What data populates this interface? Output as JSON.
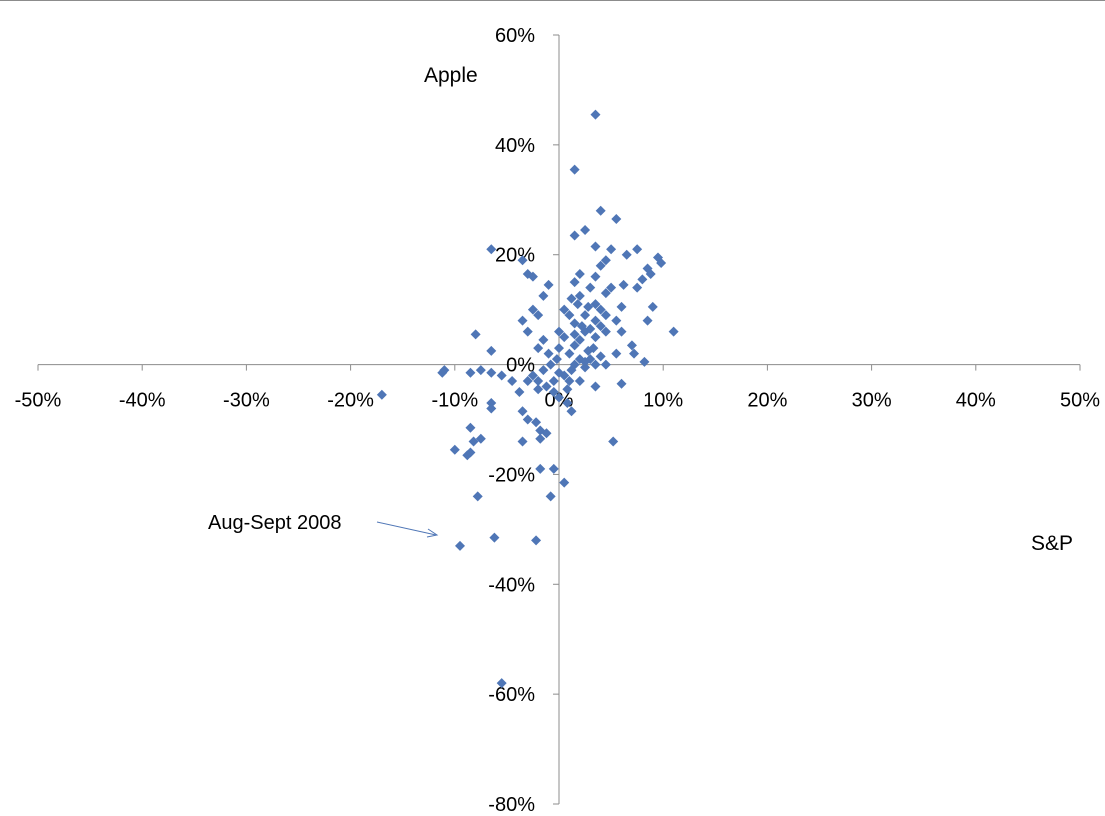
{
  "chart_data": {
    "type": "scatter",
    "ylabel": "Apple",
    "xlabel": "S&P",
    "xlim": [
      -0.5,
      0.5
    ],
    "ylim": [
      -0.8,
      0.6
    ],
    "x_ticks": [
      -0.5,
      -0.4,
      -0.3,
      -0.2,
      -0.1,
      0,
      0.1,
      0.2,
      0.3,
      0.4,
      0.5
    ],
    "x_tick_labels": [
      "-50%",
      "-40%",
      "-30%",
      "-20%",
      "-10%",
      "0%",
      "10%",
      "20%",
      "30%",
      "40%",
      "50%"
    ],
    "y_ticks": [
      0.6,
      0.4,
      0.2,
      0,
      -0.2,
      -0.4,
      -0.6,
      -0.8
    ],
    "y_tick_labels": [
      "60%",
      "40%",
      "20%",
      "0%",
      "-20%",
      "-40%",
      "-60%",
      "-80%"
    ],
    "grid": false,
    "marker": "diamond",
    "marker_color": "#4f76b6",
    "annotation": {
      "text": "Aug-Sept 2008",
      "target": [
        -0.12,
        -0.31
      ]
    },
    "points": [
      [
        0.035,
        0.455
      ],
      [
        0.015,
        0.355
      ],
      [
        0.04,
        0.28
      ],
      [
        0.055,
        0.265
      ],
      [
        0.025,
        0.245
      ],
      [
        0.015,
        0.235
      ],
      [
        0.035,
        0.215
      ],
      [
        0.05,
        0.21
      ],
      [
        0.075,
        0.21
      ],
      [
        0.095,
        0.195
      ],
      [
        0.065,
        0.2
      ],
      [
        0.045,
        0.19
      ],
      [
        0.04,
        0.18
      ],
      [
        0.085,
        0.175
      ],
      [
        0.098,
        0.185
      ],
      [
        0.088,
        0.165
      ],
      [
        0.02,
        0.165
      ],
      [
        0.035,
        0.16
      ],
      [
        0.015,
        0.15
      ],
      [
        0.08,
        0.155
      ],
      [
        0.062,
        0.145
      ],
      [
        0.03,
        0.14
      ],
      [
        0.075,
        0.14
      ],
      [
        0.05,
        0.14
      ],
      [
        0.045,
        0.13
      ],
      [
        0.02,
        0.125
      ],
      [
        0.012,
        0.12
      ],
      [
        0.018,
        0.11
      ],
      [
        0.035,
        0.11
      ],
      [
        0.04,
        0.1
      ],
      [
        0.028,
        0.105
      ],
      [
        0.06,
        0.105
      ],
      [
        0.09,
        0.105
      ],
      [
        0.005,
        0.1
      ],
      [
        0.01,
        0.09
      ],
      [
        0.025,
        0.09
      ],
      [
        0.045,
        0.09
      ],
      [
        0.055,
        0.08
      ],
      [
        0.035,
        0.08
      ],
      [
        0.015,
        0.075
      ],
      [
        0.085,
        0.08
      ],
      [
        0.06,
        0.06
      ],
      [
        0.11,
        0.06
      ],
      [
        0.045,
        0.06
      ],
      [
        0.03,
        0.065
      ],
      [
        0.025,
        0.06
      ],
      [
        0.015,
        0.055
      ],
      [
        0.005,
        0.05
      ],
      [
        0.035,
        0.05
      ],
      [
        0.02,
        0.045
      ],
      [
        0.07,
        0.035
      ],
      [
        0.072,
        0.02
      ],
      [
        0.055,
        0.02
      ],
      [
        0.04,
        0.015
      ],
      [
        0.03,
        0.01
      ],
      [
        0.02,
        0.01
      ],
      [
        0.01,
        0.02
      ],
      [
        0.0,
        0.03
      ],
      [
        0.035,
        0.0
      ],
      [
        0.082,
        0.005
      ],
      [
        0.045,
        0.0
      ],
      [
        0.015,
        0.0
      ],
      [
        0.025,
        -0.005
      ],
      [
        0.06,
        -0.035
      ],
      [
        0.035,
        -0.04
      ],
      [
        0.02,
        -0.03
      ],
      [
        0.005,
        -0.02
      ],
      [
        0.01,
        -0.03
      ],
      [
        0.052,
        -0.14
      ],
      [
        0.005,
        -0.215
      ],
      [
        -0.005,
        -0.19
      ],
      [
        -0.018,
        -0.19
      ],
      [
        -0.008,
        -0.24
      ],
      [
        0.008,
        -0.07
      ],
      [
        0.0,
        -0.06
      ],
      [
        0.012,
        -0.085
      ],
      [
        -0.005,
        -0.05
      ],
      [
        -0.012,
        -0.04
      ],
      [
        -0.02,
        -0.03
      ],
      [
        -0.025,
        -0.02
      ],
      [
        -0.015,
        -0.01
      ],
      [
        -0.008,
        0.0
      ],
      [
        -0.002,
        0.01
      ],
      [
        -0.01,
        0.02
      ],
      [
        -0.02,
        0.03
      ],
      [
        -0.015,
        0.045
      ],
      [
        0.0,
        0.06
      ],
      [
        -0.03,
        0.06
      ],
      [
        -0.035,
        0.08
      ],
      [
        -0.02,
        0.09
      ],
      [
        -0.025,
        0.1
      ],
      [
        -0.015,
        0.125
      ],
      [
        -0.01,
        0.145
      ],
      [
        -0.025,
        0.16
      ],
      [
        -0.03,
        0.165
      ],
      [
        -0.035,
        0.19
      ],
      [
        -0.065,
        0.21
      ],
      [
        -0.08,
        0.055
      ],
      [
        -0.065,
        0.025
      ],
      [
        -0.11,
        -0.01
      ],
      [
        -0.112,
        -0.015
      ],
      [
        -0.085,
        -0.015
      ],
      [
        -0.075,
        -0.01
      ],
      [
        -0.065,
        -0.015
      ],
      [
        -0.055,
        -0.02
      ],
      [
        -0.045,
        -0.03
      ],
      [
        -0.03,
        -0.03
      ],
      [
        -0.02,
        -0.045
      ],
      [
        -0.038,
        -0.05
      ],
      [
        -0.065,
        -0.07
      ],
      [
        -0.065,
        -0.08
      ],
      [
        -0.035,
        -0.085
      ],
      [
        -0.03,
        -0.1
      ],
      [
        -0.022,
        -0.105
      ],
      [
        -0.018,
        -0.12
      ],
      [
        -0.012,
        -0.125
      ],
      [
        -0.018,
        -0.135
      ],
      [
        -0.035,
        -0.14
      ],
      [
        -0.075,
        -0.135
      ],
      [
        -0.082,
        -0.14
      ],
      [
        -0.085,
        -0.115
      ],
      [
        -0.088,
        -0.165
      ],
      [
        -0.1,
        -0.155
      ],
      [
        -0.085,
        -0.16
      ],
      [
        -0.078,
        -0.24
      ],
      [
        -0.095,
        -0.33
      ],
      [
        -0.062,
        -0.315
      ],
      [
        -0.022,
        -0.32
      ],
      [
        -0.055,
        -0.58
      ],
      [
        -0.17,
        -0.055
      ],
      [
        0.025,
        0.005
      ],
      [
        0.012,
        -0.01
      ],
      [
        0.008,
        -0.045
      ],
      [
        0.0,
        -0.015
      ],
      [
        -0.005,
        -0.03
      ],
      [
        0.015,
        0.035
      ],
      [
        0.028,
        0.025
      ],
      [
        0.022,
        0.07
      ],
      [
        0.04,
        0.07
      ],
      [
        0.033,
        0.03
      ]
    ]
  }
}
